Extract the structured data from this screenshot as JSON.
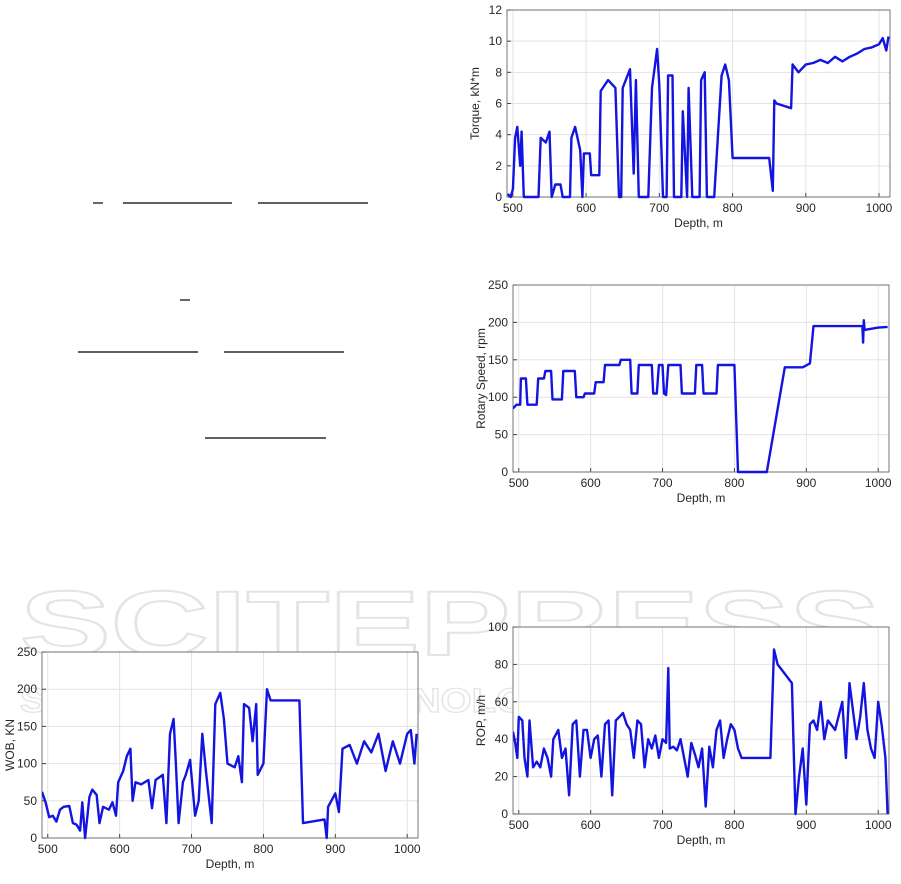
{
  "watermark": {
    "brand": "SCITEPRESS",
    "tagline": "SCIENCE AND TECHNOLOGY PUBLICATIONS"
  },
  "chart_data": [
    {
      "type": "line",
      "x_label": "Depth, m",
      "y_label": "Torque, kN*m",
      "grid": true,
      "color": "#1414e0",
      "xlim": [
        492,
        1015
      ],
      "xticks": [
        500,
        600,
        700,
        800,
        900,
        1000
      ],
      "ylim": [
        0,
        12
      ],
      "yticks": [
        0,
        2,
        4,
        6,
        8,
        10,
        12
      ],
      "x": [
        493,
        497,
        500,
        503,
        506,
        510,
        512,
        515,
        535,
        538,
        545,
        550,
        553,
        558,
        565,
        568,
        578,
        580,
        585,
        592,
        595,
        597,
        605,
        607,
        618,
        620,
        630,
        640,
        645,
        648,
        650,
        660,
        665,
        668,
        672,
        685,
        690,
        697,
        700,
        705,
        710,
        712,
        718,
        720,
        730,
        732,
        738,
        740,
        745,
        755,
        757,
        762,
        765,
        775,
        785,
        790,
        795,
        800,
        850,
        855,
        857,
        860,
        880,
        882,
        890,
        900,
        910,
        920,
        930,
        940,
        950,
        960,
        970,
        980,
        990,
        1000,
        1005,
        1010,
        1013
      ],
      "values": [
        0.2,
        0,
        0.5,
        3.8,
        4.5,
        2,
        4.2,
        0,
        0,
        3.8,
        3.5,
        4.2,
        0,
        0.8,
        0.8,
        0,
        0,
        3.8,
        4.5,
        3,
        0,
        2.8,
        2.8,
        1.4,
        1.4,
        6.8,
        7.5,
        7,
        0,
        0,
        7,
        8.2,
        1.5,
        7.5,
        0,
        0,
        7,
        9.5,
        7.2,
        0,
        0,
        7.8,
        7.8,
        0,
        0,
        5.5,
        0,
        7,
        0,
        0,
        7.5,
        8,
        0,
        0,
        7.8,
        8.5,
        7.5,
        2.5,
        2.5,
        0.4,
        6.2,
        6,
        5.7,
        8.5,
        8,
        8.5,
        8.6,
        8.8,
        8.6,
        9,
        8.7,
        9,
        9.2,
        9.5,
        9.6,
        9.8,
        10.2,
        9.4,
        10.3
      ]
    },
    {
      "type": "line",
      "x_label": "Depth, m",
      "y_label": "Rotary Speed, rpm",
      "grid": true,
      "color": "#1414e0",
      "xlim": [
        492,
        1015
      ],
      "xticks": [
        500,
        600,
        700,
        800,
        900,
        1000
      ],
      "ylim": [
        0,
        250
      ],
      "yticks": [
        0,
        50,
        100,
        150,
        200,
        250
      ],
      "x": [
        492,
        497,
        502,
        503,
        510,
        512,
        525,
        527,
        535,
        537,
        545,
        547,
        560,
        562,
        578,
        580,
        590,
        592,
        605,
        607,
        618,
        620,
        640,
        642,
        655,
        657,
        665,
        667,
        685,
        687,
        692,
        695,
        700,
        702,
        705,
        708,
        725,
        727,
        745,
        747,
        755,
        757,
        775,
        777,
        800,
        805,
        845,
        870,
        895,
        905,
        910,
        978,
        979,
        980,
        981,
        1000,
        1013
      ],
      "values": [
        85,
        90,
        90,
        125,
        125,
        90,
        90,
        125,
        125,
        135,
        135,
        97,
        97,
        135,
        135,
        100,
        100,
        105,
        105,
        120,
        120,
        143,
        143,
        150,
        150,
        105,
        105,
        143,
        143,
        105,
        105,
        143,
        143,
        105,
        103,
        143,
        143,
        105,
        105,
        143,
        143,
        105,
        105,
        143,
        143,
        0,
        0,
        140,
        140,
        145,
        195,
        195,
        173,
        203,
        190,
        193,
        194
      ]
    },
    {
      "type": "line",
      "x_label": "Depth, m",
      "y_label": "WOB, KN",
      "grid": true,
      "color": "#1414e0",
      "xlim": [
        492,
        1015
      ],
      "xticks": [
        500,
        600,
        700,
        800,
        900,
        1000
      ],
      "ylim": [
        0,
        250
      ],
      "yticks": [
        0,
        50,
        100,
        150,
        200,
        250
      ],
      "x": [
        492,
        497,
        502,
        507,
        512,
        517,
        522,
        530,
        535,
        540,
        545,
        548,
        552,
        558,
        562,
        568,
        572,
        577,
        585,
        590,
        595,
        598,
        605,
        610,
        615,
        618,
        622,
        630,
        640,
        645,
        650,
        660,
        665,
        670,
        675,
        678,
        682,
        688,
        692,
        698,
        705,
        710,
        715,
        720,
        728,
        733,
        740,
        745,
        750,
        760,
        765,
        770,
        773,
        780,
        785,
        790,
        792,
        800,
        805,
        810,
        850,
        855,
        885,
        888,
        890,
        900,
        905,
        910,
        920,
        930,
        940,
        950,
        960,
        970,
        980,
        990,
        1000,
        1005,
        1010,
        1013
      ],
      "values": [
        62,
        48,
        28,
        30,
        22,
        38,
        42,
        43,
        20,
        18,
        10,
        48,
        0,
        55,
        65,
        58,
        20,
        42,
        38,
        48,
        30,
        75,
        90,
        110,
        120,
        50,
        75,
        72,
        78,
        40,
        78,
        85,
        20,
        140,
        160,
        105,
        20,
        75,
        85,
        105,
        30,
        50,
        140,
        90,
        20,
        180,
        195,
        160,
        100,
        95,
        110,
        75,
        180,
        175,
        130,
        180,
        85,
        100,
        200,
        185,
        185,
        20,
        25,
        0,
        42,
        60,
        35,
        120,
        125,
        100,
        130,
        115,
        140,
        90,
        130,
        100,
        140,
        145,
        100,
        140
      ]
    },
    {
      "type": "line",
      "x_label": "Depth, m",
      "y_label": "ROP, m/h",
      "grid": true,
      "color": "#1414e0",
      "xlim": [
        492,
        1015
      ],
      "xticks": [
        500,
        600,
        700,
        800,
        900,
        1000
      ],
      "ylim": [
        0,
        100
      ],
      "yticks": [
        0,
        20,
        40,
        60,
        80,
        100
      ],
      "x": [
        492,
        495,
        498,
        500,
        505,
        508,
        512,
        515,
        520,
        525,
        530,
        535,
        540,
        545,
        548,
        555,
        560,
        565,
        570,
        575,
        580,
        585,
        590,
        595,
        600,
        605,
        610,
        615,
        620,
        625,
        630,
        635,
        640,
        645,
        650,
        655,
        660,
        665,
        670,
        675,
        680,
        685,
        690,
        695,
        700,
        705,
        708,
        710,
        715,
        720,
        725,
        730,
        735,
        740,
        745,
        750,
        755,
        760,
        765,
        770,
        775,
        780,
        785,
        790,
        795,
        800,
        805,
        810,
        850,
        855,
        860,
        880,
        882,
        885,
        890,
        895,
        900,
        905,
        910,
        915,
        920,
        925,
        930,
        940,
        950,
        955,
        960,
        970,
        975,
        980,
        985,
        990,
        995,
        1000,
        1005,
        1010,
        1013
      ],
      "values": [
        44,
        38,
        30,
        52,
        50,
        30,
        20,
        50,
        25,
        28,
        25,
        35,
        30,
        20,
        40,
        45,
        30,
        35,
        10,
        48,
        50,
        20,
        45,
        45,
        30,
        40,
        42,
        20,
        48,
        50,
        10,
        50,
        52,
        54,
        48,
        45,
        30,
        50,
        48,
        25,
        40,
        35,
        42,
        30,
        40,
        38,
        78,
        35,
        36,
        34,
        40,
        30,
        20,
        38,
        32,
        25,
        35,
        4,
        36,
        25,
        45,
        50,
        30,
        40,
        48,
        45,
        35,
        30,
        30,
        88,
        80,
        70,
        40,
        0,
        20,
        35,
        5,
        48,
        50,
        45,
        60,
        40,
        50,
        45,
        60,
        30,
        70,
        40,
        52,
        70,
        45,
        35,
        30,
        60,
        47,
        30,
        0
      ]
    }
  ]
}
